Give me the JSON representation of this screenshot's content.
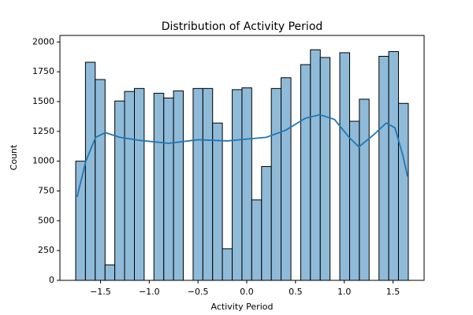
{
  "chart_data": {
    "type": "histogram",
    "title": "Distribution of Activity Period",
    "x_label": "Activity Period",
    "y_label": "Count",
    "bins": [
      -1.754,
      -1.654,
      -1.554,
      -1.453,
      -1.353,
      -1.253,
      -1.152,
      -1.052,
      -0.952,
      -0.851,
      -0.751,
      -0.651,
      -0.55,
      -0.45,
      -0.35,
      -0.25,
      -0.149,
      -0.049,
      0.051,
      0.152,
      0.252,
      0.352,
      0.453,
      0.553,
      0.653,
      0.754,
      0.854,
      0.954,
      1.055,
      1.155,
      1.255,
      1.356,
      1.456,
      1.556,
      1.657
    ],
    "values": [
      1000,
      1830,
      1685,
      130,
      1505,
      1585,
      1610,
      0,
      1570,
      1530,
      1590,
      0,
      1610,
      1610,
      1320,
      265,
      1600,
      1615,
      675,
      955,
      1610,
      1700,
      0,
      1810,
      1935,
      1870,
      0,
      1910,
      1335,
      1520,
      0,
      1880,
      1920,
      1485
    ],
    "color": "#8fbbd9",
    "edgecolor": "#000000",
    "kde": {
      "color": "#1f77b4",
      "x": [
        -1.74,
        -1.65,
        -1.55,
        -1.45,
        -1.3,
        -1.1,
        -0.8,
        -0.5,
        -0.2,
        0.0,
        0.2,
        0.4,
        0.6,
        0.75,
        0.9,
        1.05,
        1.15,
        1.3,
        1.43,
        1.52,
        1.6,
        1.65
      ],
      "values": [
        700,
        1000,
        1200,
        1240,
        1200,
        1175,
        1150,
        1180,
        1170,
        1185,
        1200,
        1260,
        1360,
        1390,
        1350,
        1200,
        1120,
        1220,
        1320,
        1280,
        1050,
        870
      ]
    },
    "xlim": [
      -1.916,
      1.819
    ],
    "ylim": [
      0,
      2055
    ],
    "xticks": [
      {
        "value": -1.5,
        "label": "−1.5"
      },
      {
        "value": -1.0,
        "label": "−1.0"
      },
      {
        "value": -0.5,
        "label": "−0.5"
      },
      {
        "value": 0.0,
        "label": "0.0"
      },
      0.5,
      {
        "value": 1.0,
        "label": "1.0"
      },
      1.5
    ],
    "yticks": [
      0,
      250,
      500,
      750,
      1000,
      1250,
      1500,
      1750,
      2000
    ]
  }
}
